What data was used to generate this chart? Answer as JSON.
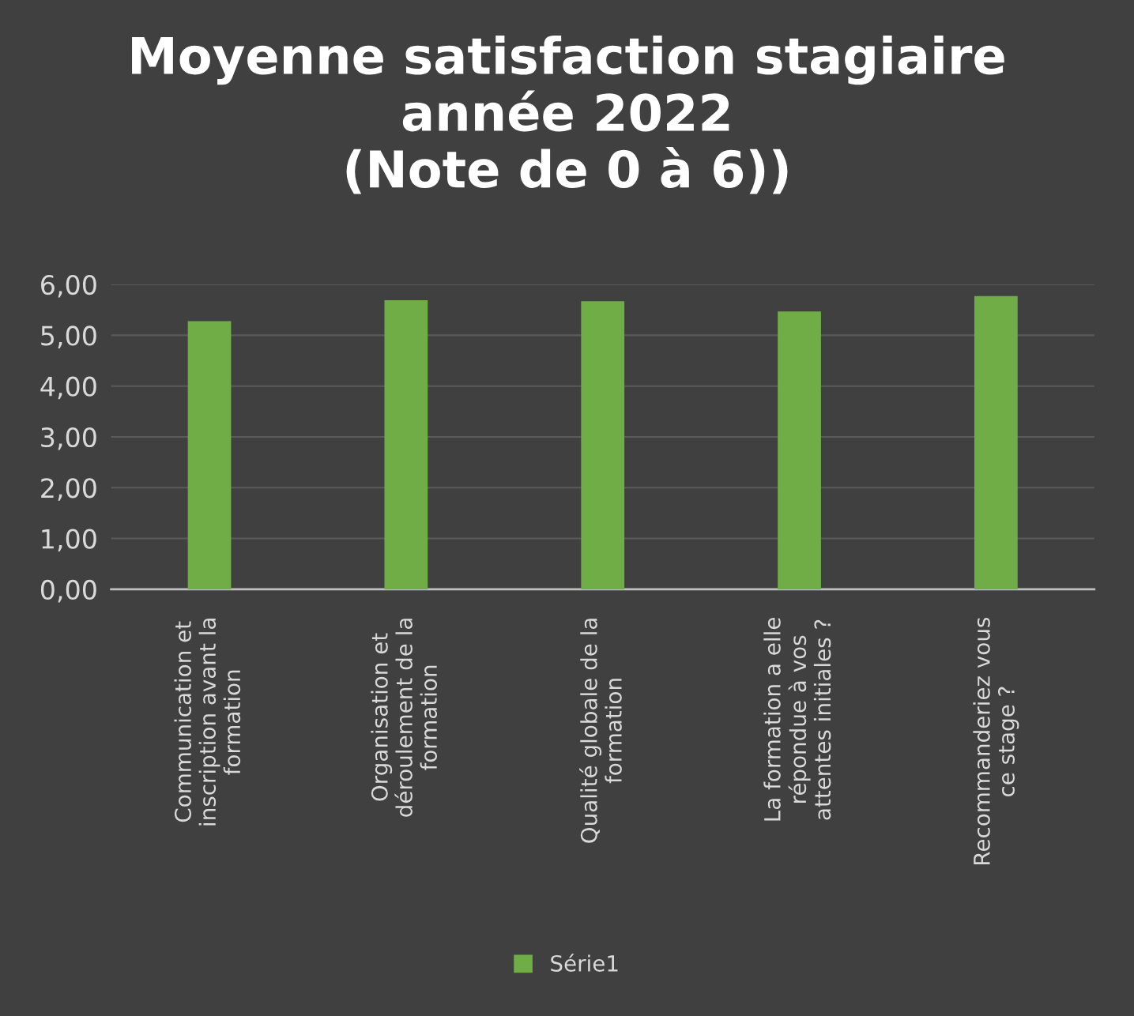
{
  "chart_data": {
    "type": "bar",
    "title": "Moyenne satisfaction stagiaire\nannée 2022\n(Note de 0 à 6))",
    "categories": [
      "Communication et\ninscription avant la\nformation",
      "Organisation et\ndéroulement de la\nformation",
      "Qualité globale de la\nformation",
      "La formation a elle\nrépondue à vos\nattentes initiales ?",
      "Recommanderiez vous\nce stage ?"
    ],
    "series": [
      {
        "name": "Série1",
        "color": "#70ad47",
        "values": [
          5.28,
          5.69,
          5.67,
          5.47,
          5.77
        ]
      }
    ],
    "ylim": [
      0,
      6
    ],
    "yticks": [
      {
        "value": 0,
        "label": "0,00"
      },
      {
        "value": 1,
        "label": "1,00"
      },
      {
        "value": 2,
        "label": "2,00"
      },
      {
        "value": 3,
        "label": "3,00"
      },
      {
        "value": 4,
        "label": "4,00"
      },
      {
        "value": 5,
        "label": "5,00"
      },
      {
        "value": 6,
        "label": "6,00"
      }
    ],
    "grid": "y",
    "legend": "bottom"
  }
}
